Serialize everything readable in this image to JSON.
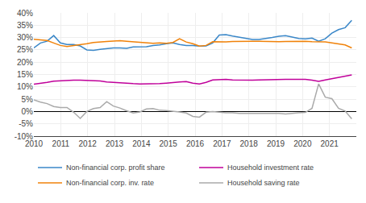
{
  "chart_data": {
    "type": "line",
    "x": [
      2010,
      2010.2464583333,
      2010.4929166667,
      2010.739375,
      2010.9858333333,
      2011.2322916667,
      2011.47875,
      2011.7252083333,
      2011.9716666667,
      2012.218125,
      2012.4645833333,
      2012.7110416667,
      2012.9575,
      2013.2039583333,
      2013.4504166667,
      2013.696875,
      2013.9433333333,
      2014.1897916667,
      2014.43625,
      2014.6827083333,
      2014.9291666667,
      2015.175625,
      2015.4220833333,
      2015.6685416667,
      2015.915,
      2016.1614583333,
      2016.4079166667,
      2016.654375,
      2016.9008333333,
      2017.1472916667,
      2017.39375,
      2017.6402083333,
      2017.8866666667,
      2018.133125,
      2018.3795833333,
      2018.6260416667,
      2018.8725,
      2019.1189583333,
      2019.3654166667,
      2019.611875,
      2019.8583333333,
      2020.1047916667,
      2020.35125,
      2020.5977083333,
      2020.8441666667,
      2021.090625,
      2021.3370833333,
      2021.5835416667,
      2021.83
    ],
    "series": [
      {
        "name": "Non-financial corp. profit share",
        "color": "#3a87c8",
        "values": [
          0.258,
          0.278,
          0.285,
          0.308,
          0.278,
          0.272,
          0.272,
          0.266,
          0.25,
          0.248,
          0.252,
          0.256,
          0.258,
          0.258,
          0.256,
          0.262,
          0.262,
          0.263,
          0.268,
          0.27,
          0.275,
          0.278,
          0.272,
          0.268,
          0.268,
          0.265,
          0.266,
          0.278,
          0.31,
          0.312,
          0.306,
          0.302,
          0.298,
          0.292,
          0.292,
          0.295,
          0.3,
          0.305,
          0.308,
          0.302,
          0.296,
          0.295,
          0.298,
          0.285,
          0.295,
          0.318,
          0.332,
          0.34,
          0.37
        ]
      },
      {
        "name": "Household investment rate",
        "color": "#c0009a",
        "values": [
          0.111,
          0.114,
          0.118,
          0.123,
          0.125,
          0.126,
          0.127,
          0.127,
          0.126,
          0.125,
          0.124,
          0.12,
          0.118,
          0.115,
          0.113,
          0.113,
          0.112,
          0.112,
          0.112,
          0.113,
          0.115,
          0.118,
          0.12,
          0.121,
          0.115,
          0.112,
          0.118,
          0.128,
          0.13,
          0.13,
          0.128,
          0.127,
          0.126,
          0.127,
          0.128,
          0.129,
          0.13,
          0.131,
          0.13,
          0.13,
          0.13,
          0.13,
          0.127,
          0.122,
          0.128,
          0.133,
          0.136,
          0.142,
          0.148
        ]
      },
      {
        "name": "Non-financial corp. inv. rate",
        "color": "#f0820a",
        "values": [
          0.293,
          0.29,
          0.288,
          0.278,
          0.268,
          0.264,
          0.267,
          0.27,
          0.275,
          0.28,
          0.281,
          0.284,
          0.286,
          0.287,
          0.285,
          0.283,
          0.28,
          0.278,
          0.277,
          0.278,
          0.277,
          0.28,
          0.295,
          0.282,
          0.275,
          0.265,
          0.268,
          0.283,
          0.282,
          0.282,
          0.284,
          0.285,
          0.285,
          0.285,
          0.285,
          0.284,
          0.283,
          0.283,
          0.284,
          0.285,
          0.285,
          0.285,
          0.283,
          0.282,
          0.282,
          0.278,
          0.275,
          0.27,
          0.258
        ]
      },
      {
        "name": "Household saving rate",
        "color": "#aaaaaa",
        "values": [
          0.047,
          0.038,
          0.032,
          0.02,
          0.016,
          0.016,
          -0.003,
          -0.028,
          0.0,
          0.012,
          0.016,
          0.04,
          0.022,
          0.014,
          0.003,
          -0.006,
          -0.002,
          0.01,
          0.012,
          0.005,
          0.004,
          0.002,
          -0.002,
          -0.006,
          -0.02,
          -0.023,
          -0.003,
          0.0,
          -0.003,
          -0.005,
          -0.005,
          -0.008,
          -0.008,
          -0.008,
          -0.008,
          -0.007,
          -0.006,
          -0.008,
          -0.01,
          -0.007,
          -0.005,
          -0.004,
          0.013,
          0.112,
          0.058,
          0.052,
          0.013,
          0.002,
          -0.03
        ]
      }
    ],
    "xlim": [
      2010,
      2022
    ],
    "xticks": [
      2010,
      2011,
      2012,
      2013,
      2014,
      2015,
      2016,
      2017,
      2018,
      2019,
      2020,
      2021
    ],
    "ylim": [
      -0.1,
      0.4
    ],
    "yticks": [
      {
        "value": -0.1,
        "label": "-10%"
      },
      {
        "value": -0.05,
        "label": "-5%"
      },
      {
        "value": 0.0,
        "label": "0%"
      },
      {
        "value": 0.05,
        "label": "5%"
      },
      {
        "value": 0.1,
        "label": "10%"
      },
      {
        "value": 0.15,
        "label": "15%"
      },
      {
        "value": 0.2,
        "label": "20%"
      },
      {
        "value": 0.25,
        "label": "25%"
      },
      {
        "value": 0.3,
        "label": "30%"
      },
      {
        "value": 0.35,
        "label": "35%"
      },
      {
        "value": 0.4,
        "label": "40%"
      }
    ],
    "grid": true,
    "legend": "bottom"
  }
}
